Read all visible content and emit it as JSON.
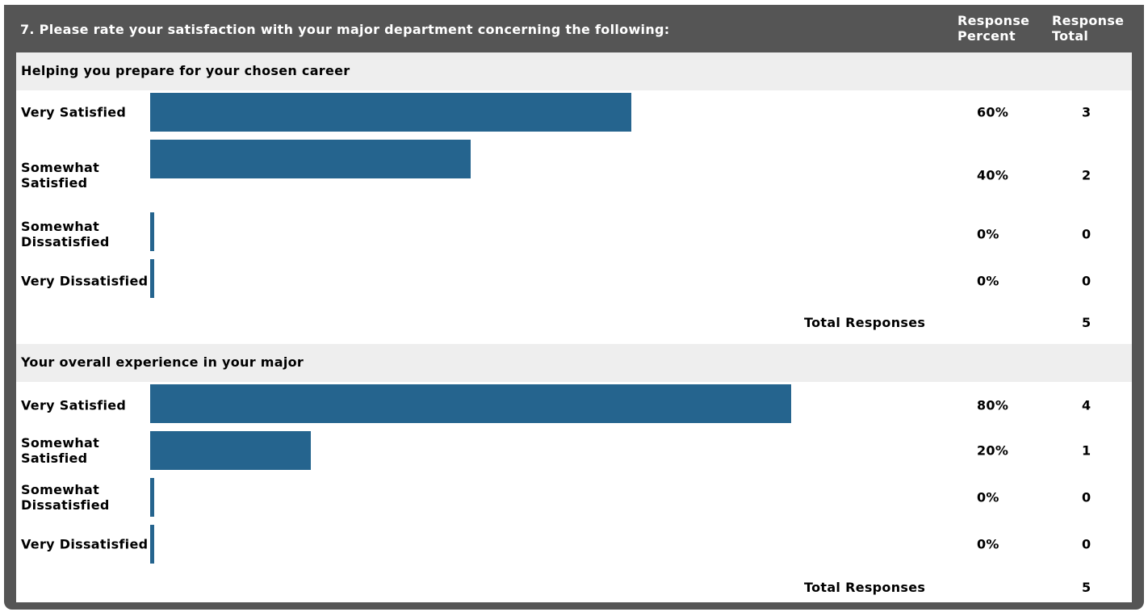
{
  "question": {
    "title": "7. Please rate your satisfaction with your major department concerning the following:",
    "col_percent_line1": "Response",
    "col_percent_line2": "Percent",
    "col_total_line1": "Response",
    "col_total_line2": "Total"
  },
  "chart_data": [
    {
      "type": "bar",
      "orientation": "horizontal",
      "title": "Helping you prepare for your chosen career",
      "categories": [
        "Very Satisfied",
        "Somewhat Satisfied",
        "Somewhat Dissatisfied",
        "Very Dissatisfied"
      ],
      "values": [
        60,
        40,
        0,
        0
      ],
      "percent_labels": [
        "60%",
        "40%",
        "0%",
        "0%"
      ],
      "counts": [
        3,
        2,
        0,
        0
      ],
      "xlim": [
        0,
        100
      ],
      "bar_color": "#25648e",
      "total_label": "Total Responses",
      "total": 5
    },
    {
      "type": "bar",
      "orientation": "horizontal",
      "title": "Your overall experience in your major",
      "categories": [
        "Very Satisfied",
        "Somewhat Satisfied",
        "Somewhat Dissatisfied",
        "Very Dissatisfied"
      ],
      "values": [
        80,
        20,
        0,
        0
      ],
      "percent_labels": [
        "80%",
        "20%",
        "0%",
        "0%"
      ],
      "counts": [
        4,
        1,
        0,
        0
      ],
      "xlim": [
        0,
        100
      ],
      "bar_color": "#25648e",
      "total_label": "Total Responses",
      "total": 5
    }
  ]
}
